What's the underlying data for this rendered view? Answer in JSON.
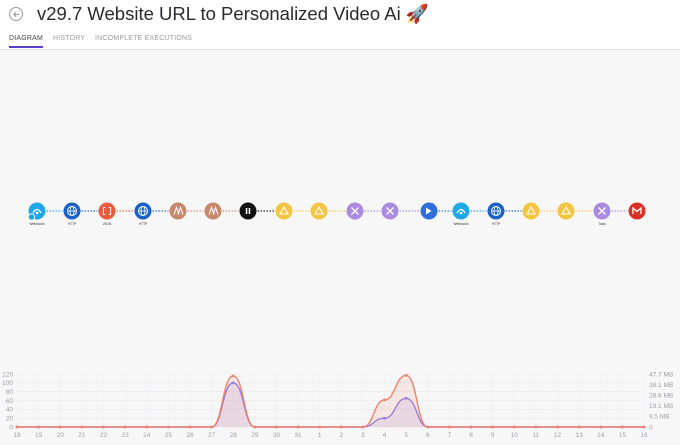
{
  "header": {
    "title": "v29.7 Website URL to Personalized Video Ai 🚀",
    "back_icon": "back-arrow-icon"
  },
  "tabs": [
    {
      "label": "DIAGRAM",
      "active": true
    },
    {
      "label": "HISTORY",
      "active": false
    },
    {
      "label": "INCOMPLETE EXECUTIONS",
      "active": false
    }
  ],
  "flow": {
    "nodes": [
      {
        "icon": "webhooks-icon",
        "color": "#1fa8e8",
        "label": "Webhooks",
        "sub": "",
        "trigger": true
      },
      {
        "icon": "http-globe-icon",
        "color": "#1a62c7",
        "label": "HTTP",
        "sub": ""
      },
      {
        "icon": "json-brackets-icon",
        "color": "#ea5a3d",
        "label": "JSON",
        "sub": ""
      },
      {
        "icon": "http-globe-icon",
        "color": "#1a62c7",
        "label": "HTTP",
        "sub": ""
      },
      {
        "icon": "ai-logo-icon",
        "color": "#c8876b",
        "label": "",
        "sub": ""
      },
      {
        "icon": "ai-logo-icon",
        "color": "#c8876b",
        "label": "",
        "sub": ""
      },
      {
        "icon": "pause-icon",
        "color": "#111111",
        "label": "",
        "sub": ""
      },
      {
        "icon": "google-drive-icon",
        "color": "#f5c542",
        "label": "",
        "sub": ""
      },
      {
        "icon": "google-drive-icon",
        "color": "#f5c542",
        "label": "",
        "sub": ""
      },
      {
        "icon": "tools-icon",
        "color": "#a98be0",
        "label": "",
        "sub": ""
      },
      {
        "icon": "tools-icon",
        "color": "#a98be0",
        "label": "",
        "sub": ""
      },
      {
        "icon": "arrow-right-icon",
        "color": "#2f6fdc",
        "label": "",
        "sub": ""
      },
      {
        "icon": "webhooks-icon",
        "color": "#1fa8e8",
        "label": "Webhooks",
        "sub": ""
      },
      {
        "icon": "http-globe-icon",
        "color": "#1a62c7",
        "label": "HTTP",
        "sub": ""
      },
      {
        "icon": "google-drive-icon",
        "color": "#f5c542",
        "label": "",
        "sub": ""
      },
      {
        "icon": "google-drive-icon",
        "color": "#f5c542",
        "label": "",
        "sub": ""
      },
      {
        "icon": "tools-icon",
        "color": "#a98be0",
        "label": "Tools",
        "sub": ""
      },
      {
        "icon": "gmail-icon",
        "color": "#d93025",
        "label": "",
        "sub": ""
      }
    ]
  },
  "chart_data": {
    "type": "area",
    "categories": [
      "18",
      "19",
      "20",
      "21",
      "22",
      "23",
      "24",
      "25",
      "26",
      "27",
      "28",
      "29",
      "30",
      "31",
      "1",
      "2",
      "3",
      "4",
      "5",
      "6",
      "7",
      "8",
      "9",
      "10",
      "11",
      "12",
      "13",
      "14",
      "15",
      "16"
    ],
    "series": [
      {
        "color": "#8c80e8",
        "values": [
          0,
          0,
          0,
          0,
          0,
          0,
          0,
          0,
          0,
          0,
          100,
          0,
          0,
          0,
          0,
          0,
          0,
          20,
          65,
          0,
          0,
          0,
          0,
          0,
          0,
          0,
          0,
          0,
          0,
          0
        ],
        "axis": "left"
      },
      {
        "color": "#f0826a",
        "values": [
          0,
          0,
          0,
          0,
          0,
          0,
          0,
          0,
          0,
          0,
          46,
          0,
          0,
          0,
          0,
          0,
          0,
          24.4,
          46.5,
          0,
          0,
          0,
          0,
          0,
          0,
          0,
          0,
          0,
          0,
          0
        ],
        "axis": "right"
      }
    ],
    "y_left_ticks": [
      "120",
      "100",
      "80",
      "60",
      "40",
      "20",
      "0"
    ],
    "y_right_ticks": [
      "47.7 MB",
      "38.1 MB",
      "28.6 MB",
      "19.1 MB",
      "9.5 MB",
      "0"
    ],
    "ylim_left": [
      0,
      120
    ],
    "ylim_right": [
      0,
      47.7
    ],
    "grid": true
  }
}
